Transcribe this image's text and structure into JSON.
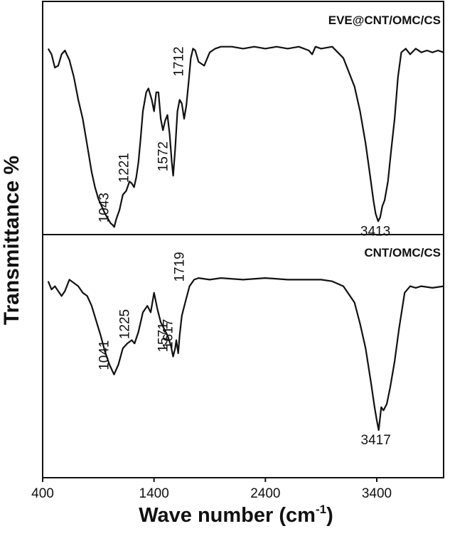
{
  "chart_data": {
    "type": "line",
    "xlabel": "Wave number (cm",
    "xlabel_sup": "-1",
    "xlabel_close": ")",
    "ylabel": "Transmittance %",
    "xlim": [
      400,
      4000
    ],
    "xticks": [
      400,
      1400,
      2400,
      3400
    ],
    "panels": [
      {
        "name": "EVE@CNT/OMC/CS",
        "ylim": [
          0,
          100
        ],
        "peaks": [
          {
            "label": "1043",
            "x": 1043
          },
          {
            "label": "1221",
            "x": 1221
          },
          {
            "label": "1572",
            "x": 1572
          },
          {
            "label": "1712",
            "x": 1712
          },
          {
            "label": "3413",
            "x": 3413
          }
        ],
        "x": [
          450,
          480,
          510,
          540,
          570,
          600,
          640,
          680,
          720,
          760,
          800,
          840,
          870,
          900,
          930,
          960,
          990,
          1010,
          1030,
          1043,
          1060,
          1090,
          1120,
          1150,
          1180,
          1200,
          1221,
          1240,
          1260,
          1280,
          1300,
          1330,
          1350,
          1380,
          1400,
          1420,
          1440,
          1460,
          1480,
          1500,
          1520,
          1540,
          1560,
          1572,
          1590,
          1610,
          1630,
          1650,
          1670,
          1690,
          1712,
          1730,
          1750,
          1770,
          1800,
          1850,
          1900,
          1950,
          2000,
          2100,
          2200,
          2300,
          2400,
          2500,
          2600,
          2700,
          2790,
          2820,
          2850,
          2900,
          3000,
          3100,
          3200,
          3250,
          3300,
          3340,
          3370,
          3390,
          3413,
          3430,
          3450,
          3470,
          3500,
          3530,
          3560,
          3590,
          3620,
          3660,
          3700,
          3750,
          3800,
          3850,
          3900,
          3950,
          4000
        ],
        "y": [
          95,
          92,
          85,
          86,
          92,
          94,
          89,
          80,
          68,
          58,
          44,
          30,
          22,
          16,
          12,
          8,
          5,
          3,
          2,
          1,
          5,
          10,
          18,
          20,
          25,
          24,
          22,
          27,
          35,
          48,
          62,
          72,
          74,
          68,
          62,
          72,
          72,
          58,
          52,
          57,
          60,
          50,
          35,
          28,
          42,
          62,
          68,
          66,
          58,
          65,
          78,
          90,
          95,
          94,
          88,
          86,
          93,
          95,
          96,
          96,
          95,
          96,
          95,
          96,
          95,
          96,
          94,
          92,
          96,
          95,
          96,
          90,
          75,
          62,
          45,
          28,
          15,
          8,
          4,
          6,
          12,
          15,
          25,
          42,
          58,
          80,
          93,
          95,
          92,
          95,
          93,
          94,
          93,
          94,
          93
        ]
      },
      {
        "name": "CNT/OMC/CS",
        "ylim": [
          0,
          100
        ],
        "peaks": [
          {
            "label": "1041",
            "x": 1041
          },
          {
            "label": "1225",
            "x": 1225
          },
          {
            "label": "1571",
            "x": 1571
          },
          {
            "label": "1617",
            "x": 1617
          },
          {
            "label": "1719",
            "x": 1719
          },
          {
            "label": "3417",
            "x": 3417
          }
        ],
        "x": [
          450,
          480,
          510,
          540,
          570,
          600,
          640,
          680,
          720,
          760,
          800,
          840,
          880,
          920,
          960,
          1000,
          1041,
          1080,
          1120,
          1160,
          1200,
          1225,
          1260,
          1300,
          1340,
          1370,
          1400,
          1430,
          1460,
          1490,
          1520,
          1550,
          1571,
          1590,
          1600,
          1617,
          1630,
          1650,
          1680,
          1719,
          1760,
          1800,
          1900,
          2000,
          2200,
          2400,
          2600,
          2800,
          2900,
          3000,
          3100,
          3200,
          3250,
          3300,
          3350,
          3380,
          3400,
          3417,
          3440,
          3460,
          3490,
          3520,
          3560,
          3600,
          3650,
          3700,
          3750,
          3800,
          3900,
          4000
        ],
        "y": [
          91,
          86,
          88,
          85,
          82,
          85,
          92,
          90,
          88,
          84,
          82,
          76,
          67,
          58,
          48,
          40,
          34,
          40,
          50,
          53,
          55,
          53,
          60,
          72,
          76,
          72,
          84,
          74,
          66,
          62,
          58,
          52,
          45,
          50,
          55,
          47,
          58,
          70,
          78,
          88,
          92,
          93,
          92,
          93,
          92,
          93,
          92,
          92,
          92,
          91,
          88,
          78,
          65,
          50,
          28,
          14,
          6,
          0,
          14,
          12,
          16,
          26,
          42,
          62,
          84,
          88,
          87,
          88,
          87,
          88
        ]
      }
    ]
  }
}
